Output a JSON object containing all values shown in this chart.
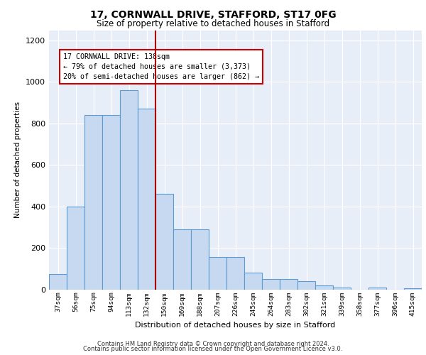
{
  "title1": "17, CORNWALL DRIVE, STAFFORD, ST17 0FG",
  "title2": "Size of property relative to detached houses in Stafford",
  "xlabel": "Distribution of detached houses by size in Stafford",
  "ylabel": "Number of detached properties",
  "categories": [
    "37sqm",
    "56sqm",
    "75sqm",
    "94sqm",
    "113sqm",
    "132sqm",
    "150sqm",
    "169sqm",
    "188sqm",
    "207sqm",
    "226sqm",
    "245sqm",
    "264sqm",
    "283sqm",
    "302sqm",
    "321sqm",
    "339sqm",
    "358sqm",
    "377sqm",
    "396sqm",
    "415sqm"
  ],
  "values": [
    75,
    400,
    840,
    840,
    960,
    870,
    460,
    290,
    290,
    155,
    155,
    80,
    50,
    50,
    40,
    20,
    10,
    0,
    8,
    0,
    5
  ],
  "bar_color": "#c6d9f0",
  "bar_edge_color": "#5b9bd5",
  "vline_color": "#aa0000",
  "annotation_text_line1": "17 CORNWALL DRIVE: 138sqm",
  "annotation_text_line2": "← 79% of detached houses are smaller (3,373)",
  "annotation_text_line3": "20% of semi-detached houses are larger (862) →",
  "annotation_box_color": "#cc0000",
  "ylim": [
    0,
    1250
  ],
  "yticks": [
    0,
    200,
    400,
    600,
    800,
    1000,
    1200
  ],
  "background_color": "#e8eef8",
  "grid_color": "#ffffff",
  "footer1": "Contains HM Land Registry data © Crown copyright and database right 2024.",
  "footer2": "Contains public sector information licensed under the Open Government Licence v3.0."
}
